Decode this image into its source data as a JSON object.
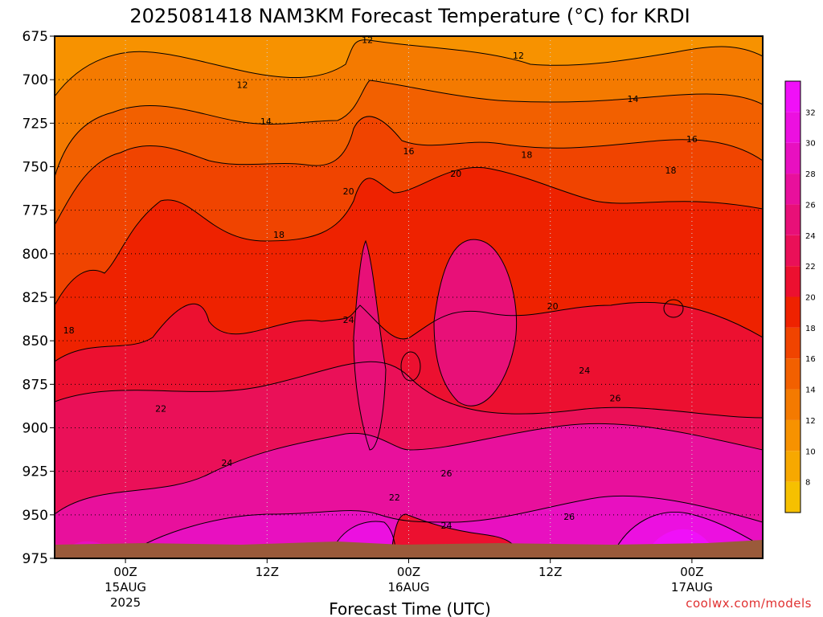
{
  "chart_data": {
    "type": "heatmap",
    "title": "2025081418 NAM3KM Forecast Temperature (°C) for KRDI",
    "xlabel": "Forecast Time (UTC)",
    "ylabel": "",
    "y_axis": {
      "ticks": [
        675,
        700,
        725,
        750,
        775,
        800,
        825,
        850,
        875,
        900,
        925,
        950,
        975
      ],
      "range": [
        675,
        975
      ]
    },
    "x_axis": {
      "ticks": [
        {
          "hours": 0,
          "label": "00Z",
          "sub1": "15AUG",
          "sub2": "2025"
        },
        {
          "hours": 12,
          "label": "12Z",
          "sub1": "",
          "sub2": ""
        },
        {
          "hours": 24,
          "label": "00Z",
          "sub1": "16AUG",
          "sub2": ""
        },
        {
          "hours": 36,
          "label": "12Z",
          "sub1": "",
          "sub2": ""
        },
        {
          "hours": 48,
          "label": "00Z",
          "sub1": "17AUG",
          "sub2": ""
        }
      ],
      "range_hours": [
        -6,
        54
      ]
    },
    "grid": true,
    "colorbar": {
      "levels": [
        6,
        8,
        10,
        12,
        14,
        16,
        18,
        20,
        22,
        24,
        26,
        28,
        30,
        32,
        34
      ],
      "labels": [
        8,
        10,
        12,
        14,
        16,
        18,
        20,
        22,
        24,
        26,
        28,
        30,
        32
      ],
      "colors": [
        "#f6c000",
        "#f7a800",
        "#f79200",
        "#f47a00",
        "#f26000",
        "#f04400",
        "#ee2200",
        "#ec1030",
        "#ea1058",
        "#e81078",
        "#e8109c",
        "#e810c0",
        "#ec10e0",
        "#f010f8"
      ]
    },
    "contour_labels": [
      {
        "text": "12",
        "h": 20.5,
        "p": 677
      },
      {
        "text": "12",
        "h": 33.3,
        "p": 686
      },
      {
        "text": "12",
        "h": 9.9,
        "p": 703
      },
      {
        "text": "14",
        "h": 43,
        "p": 711
      },
      {
        "text": "14",
        "h": 11.9,
        "p": 724
      },
      {
        "text": "16",
        "h": 48,
        "p": 734
      },
      {
        "text": "16",
        "h": 24,
        "p": 741
      },
      {
        "text": "18",
        "h": 34,
        "p": 743
      },
      {
        "text": "18",
        "h": 46.2,
        "p": 752
      },
      {
        "text": "20",
        "h": 28,
        "p": 754
      },
      {
        "text": "20",
        "h": 18.9,
        "p": 764
      },
      {
        "text": "18",
        "h": 13,
        "p": 789
      },
      {
        "text": "20",
        "h": 36.2,
        "p": 830
      },
      {
        "text": "18",
        "h": -4.8,
        "p": 844
      },
      {
        "text": "24",
        "h": 18.9,
        "p": 838
      },
      {
        "text": "24",
        "h": 38.9,
        "p": 867
      },
      {
        "text": "22",
        "h": 3,
        "p": 889
      },
      {
        "text": "26",
        "h": 41.5,
        "p": 883
      },
      {
        "text": "24",
        "h": 8.6,
        "p": 920
      },
      {
        "text": "26",
        "h": 27.2,
        "p": 926
      },
      {
        "text": "22",
        "h": 22.8,
        "p": 940
      },
      {
        "text": "26",
        "h": 37.6,
        "p": 951
      },
      {
        "text": "24",
        "h": 27.2,
        "p": 956
      }
    ]
  },
  "credit": "coolwx.com/models"
}
